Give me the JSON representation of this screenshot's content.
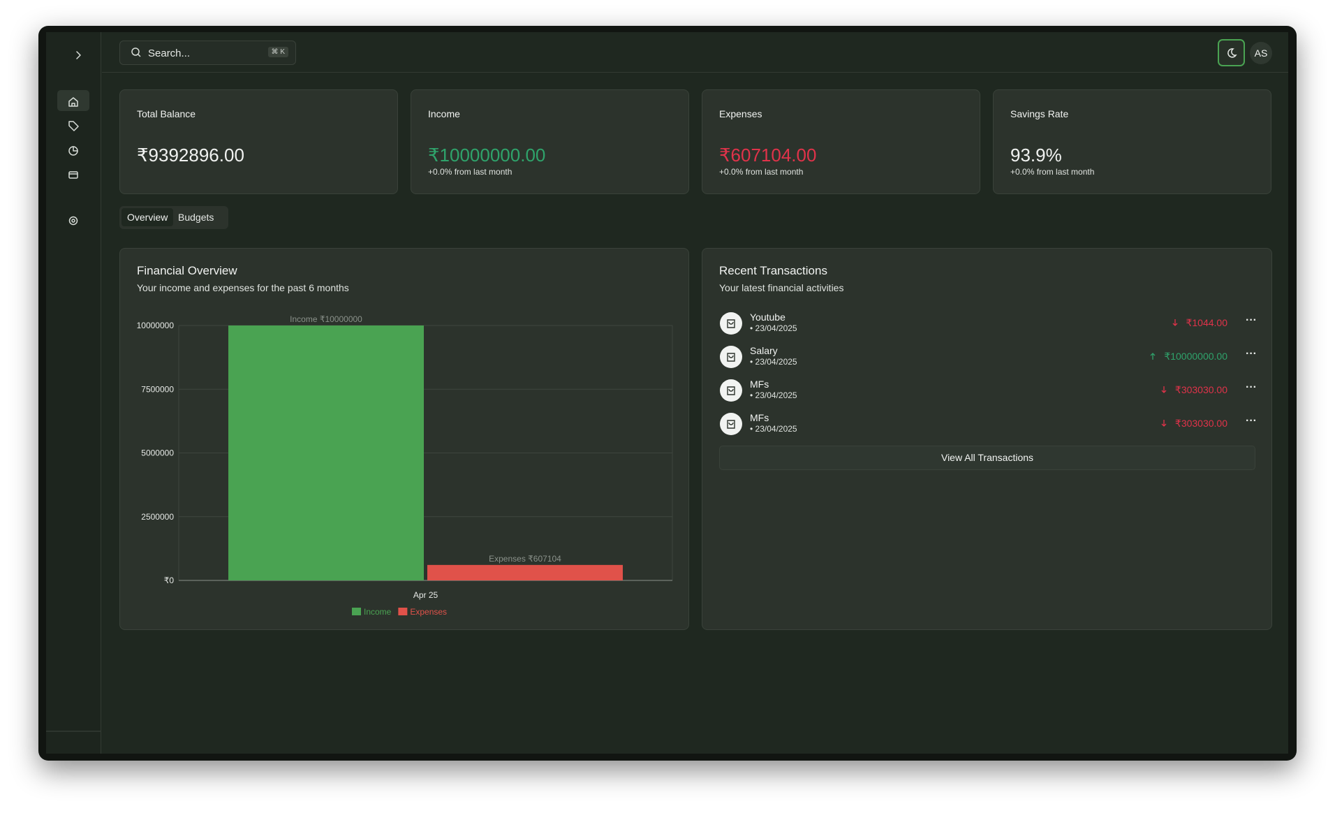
{
  "search": {
    "placeholder": "Search...",
    "shortcut": "⌘ K"
  },
  "user": {
    "initials": "AS"
  },
  "cards": [
    {
      "label": "Total Balance",
      "value": "₹9392896.00"
    },
    {
      "label": "Income",
      "value": "₹10000000.00",
      "change": "+0.0% from last month"
    },
    {
      "label": "Expenses",
      "value": "₹607104.00",
      "change": "+0.0% from last month"
    },
    {
      "label": "Savings Rate",
      "value": "93.9%",
      "change": "+0.0% from last month"
    }
  ],
  "tabs": [
    "Overview",
    "Budgets"
  ],
  "chart_data": {
    "type": "bar",
    "title": "Financial Overview",
    "subtitle": "Your income and expenses for the past 6 months",
    "categories": [
      "Apr 25"
    ],
    "series": [
      {
        "name": "Income",
        "color": "#4aa352",
        "values": [
          10000000
        ],
        "value_labels": [
          "Income ₹10000000"
        ]
      },
      {
        "name": "Expenses",
        "color": "#e0524a",
        "values": [
          607104
        ],
        "value_labels": [
          "Expenses ₹607104"
        ]
      }
    ],
    "ylim": [
      0,
      10000000
    ],
    "yticks": [
      {
        "value": 0,
        "label": "₹0"
      },
      2500000,
      5000000,
      7500000,
      {
        "value": 10000000,
        "label": "10000000"
      }
    ],
    "grid": true,
    "legend": "bottom"
  },
  "transactions": {
    "title": "Recent Transactions",
    "subtitle": "Your latest financial activities",
    "items": [
      {
        "name": "Youtube",
        "date": "• 23/04/2025",
        "amount": "₹1044.00",
        "direction": "out"
      },
      {
        "name": "Salary",
        "date": "• 23/04/2025",
        "amount": "₹10000000.00",
        "direction": "in"
      },
      {
        "name": "MFs",
        "date": "• 23/04/2025",
        "amount": "₹303030.00",
        "direction": "out"
      },
      {
        "name": "MFs",
        "date": "• 23/04/2025",
        "amount": "₹303030.00",
        "direction": "out"
      }
    ],
    "button": "View All Transactions"
  }
}
